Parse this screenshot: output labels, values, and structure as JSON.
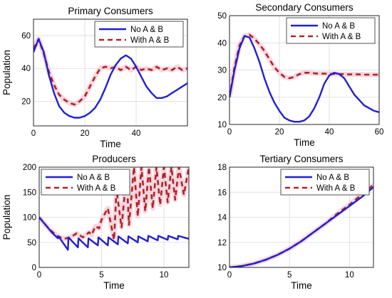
{
  "chart_data": [
    {
      "type": "line",
      "title": "Primary Consumers",
      "xlabel": "Time",
      "ylabel": "Population",
      "xlim": [
        0,
        60
      ],
      "ylim": [
        5,
        70
      ],
      "xticks": [
        "0",
        "20",
        "40"
      ],
      "yticks": [
        "20",
        "40",
        "60"
      ],
      "grid": true,
      "legend_position": "top-right",
      "series": [
        {
          "name": "No A & B",
          "color": "#1f1fd6",
          "style": "solid",
          "x": [
            0,
            2,
            4,
            6,
            8,
            10,
            12,
            14,
            16,
            18,
            20,
            22,
            24,
            26,
            28,
            30,
            32,
            34,
            36,
            38,
            40,
            42,
            44,
            46,
            48,
            50,
            52,
            54,
            56,
            58,
            60
          ],
          "y": [
            50,
            58,
            50,
            36,
            25,
            17,
            13,
            11,
            10,
            10,
            11,
            13,
            16,
            21,
            28,
            36,
            42,
            46,
            48,
            46,
            41,
            35,
            29,
            25,
            22,
            22,
            23,
            25,
            27,
            29,
            31
          ]
        },
        {
          "name": "With A & B",
          "color": "#b22222",
          "style": "dashed",
          "x": [
            0,
            2,
            4,
            6,
            8,
            10,
            12,
            14,
            16,
            18,
            20,
            22,
            24,
            26,
            28,
            30,
            32,
            34,
            36,
            38,
            40,
            42,
            44,
            46,
            48,
            50,
            52,
            54,
            56,
            58,
            60
          ],
          "y": [
            52,
            58,
            49,
            38,
            30,
            24,
            21,
            19,
            18,
            20,
            23,
            29,
            35,
            40,
            41,
            40,
            41,
            39,
            41,
            39,
            41,
            39,
            40,
            39,
            41,
            39,
            40,
            39,
            41,
            39,
            40
          ]
        }
      ]
    },
    {
      "type": "line",
      "title": "Secondary Consumers",
      "xlabel": "Time",
      "ylabel": "",
      "xlim": [
        0,
        60
      ],
      "ylim": [
        10,
        50
      ],
      "xticks": [
        "0",
        "20",
        "40",
        "60"
      ],
      "yticks": [
        "10",
        "20",
        "30",
        "40",
        "50"
      ],
      "grid": true,
      "legend_position": "top-right",
      "series": [
        {
          "name": "No A & B",
          "color": "#1f1fd6",
          "style": "solid",
          "x": [
            0,
            2,
            4,
            6,
            8,
            10,
            12,
            14,
            16,
            18,
            20,
            22,
            24,
            26,
            28,
            30,
            32,
            34,
            36,
            38,
            40,
            42,
            44,
            46,
            48,
            50,
            52,
            54,
            56,
            58,
            60
          ],
          "y": [
            20,
            30,
            38,
            42.5,
            42,
            38,
            33,
            27,
            22,
            18,
            15,
            12.5,
            11.5,
            11,
            11,
            11.5,
            13,
            16,
            20,
            25,
            28,
            29,
            28.5,
            27,
            24,
            21,
            19,
            17,
            16,
            15,
            14.5
          ]
        },
        {
          "name": "With A & B",
          "color": "#b22222",
          "style": "dashed",
          "x": [
            0,
            2,
            4,
            6,
            8,
            10,
            12,
            14,
            16,
            18,
            20,
            22,
            24,
            26,
            28,
            30,
            32,
            34,
            36,
            38,
            40,
            42,
            44,
            46,
            48,
            50,
            52,
            54,
            56,
            58,
            60
          ],
          "y": [
            20,
            31,
            39,
            42.5,
            43,
            41.5,
            39.5,
            37,
            34,
            31,
            29,
            27.5,
            27,
            27.5,
            28.5,
            29,
            29,
            28.8,
            28.7,
            28.7,
            28.6,
            28.6,
            28.5,
            28.5,
            28.4,
            28.4,
            28.4,
            28.3,
            28.3,
            28.3,
            28.3
          ]
        }
      ]
    },
    {
      "type": "line",
      "title": "Producers",
      "xlabel": "Time",
      "ylabel": "Population",
      "xlim": [
        0,
        12
      ],
      "ylim": [
        0,
        200
      ],
      "xticks": [
        "0",
        "5",
        "10"
      ],
      "yticks": [
        "0",
        "50",
        "100",
        "150",
        "200"
      ],
      "grid": true,
      "legend_position": "top-left",
      "series": [
        {
          "name": "No A & B",
          "color": "#1f1fd6",
          "style": "solid",
          "x": [
            0,
            0.5,
            1,
            1.5,
            1.55,
            2.3,
            2.35,
            3.1,
            3.15,
            3.9,
            3.95,
            4.7,
            4.75,
            5.5,
            5.55,
            6.3,
            6.35,
            7.1,
            7.15,
            7.9,
            7.95,
            8.7,
            8.75,
            9.5,
            9.55,
            10.3,
            10.35,
            11.1,
            11.15,
            12
          ],
          "y": [
            100,
            85,
            70,
            58,
            62,
            35,
            60,
            40,
            58,
            40,
            58,
            44,
            60,
            44,
            60,
            46,
            62,
            48,
            62,
            50,
            62,
            52,
            63,
            54,
            63,
            55,
            63,
            56,
            63,
            57
          ]
        },
        {
          "name": "With A & B",
          "color": "#b22222",
          "style": "dashed",
          "x": [
            0,
            0.5,
            1,
            1.5,
            2,
            2.5,
            3,
            3.5,
            4,
            4.2,
            4.5,
            4.8,
            5,
            5.5,
            6,
            6.2,
            6.6,
            7,
            7.2,
            7.6,
            7.9,
            8.2,
            8.5,
            8.8,
            9.1,
            9.4,
            9.7,
            10,
            10.3,
            10.6,
            10.9,
            11.2,
            11.6,
            12
          ],
          "y": [
            100,
            85,
            72,
            62,
            57,
            60,
            68,
            60,
            70,
            65,
            82,
            78,
            95,
            118,
            55,
            155,
            80,
            185,
            85,
            200,
            102,
            200,
            112,
            200,
            118,
            200,
            125,
            200,
            130,
            200,
            135,
            200,
            145,
            200
          ]
        }
      ]
    },
    {
      "type": "line",
      "title": "Tertiary Consumers",
      "xlabel": "Time",
      "ylabel": "",
      "xlim": [
        0,
        12
      ],
      "ylim": [
        10,
        18
      ],
      "xticks": [
        "0",
        "5",
        "10"
      ],
      "yticks": [
        "10",
        "12",
        "14",
        "16",
        "18"
      ],
      "grid": true,
      "legend_position": "top-right",
      "series": [
        {
          "name": "No A & B",
          "color": "#1f1fd6",
          "style": "solid",
          "x": [
            0,
            1,
            2,
            3,
            4,
            5,
            6,
            7,
            8,
            9,
            10,
            11,
            12
          ],
          "y": [
            10,
            10.1,
            10.3,
            10.6,
            11.0,
            11.5,
            12.1,
            12.8,
            13.5,
            14.2,
            14.9,
            15.6,
            16.4
          ]
        },
        {
          "name": "With A & B",
          "color": "#b22222",
          "style": "dashed",
          "x": [
            0,
            1,
            2,
            3,
            4,
            5,
            6,
            7,
            8,
            9,
            10,
            11,
            12
          ],
          "y": [
            10,
            10.1,
            10.3,
            10.6,
            11.0,
            11.5,
            12.1,
            12.8,
            13.5,
            14.3,
            15.0,
            15.8,
            16.6
          ]
        }
      ]
    }
  ]
}
